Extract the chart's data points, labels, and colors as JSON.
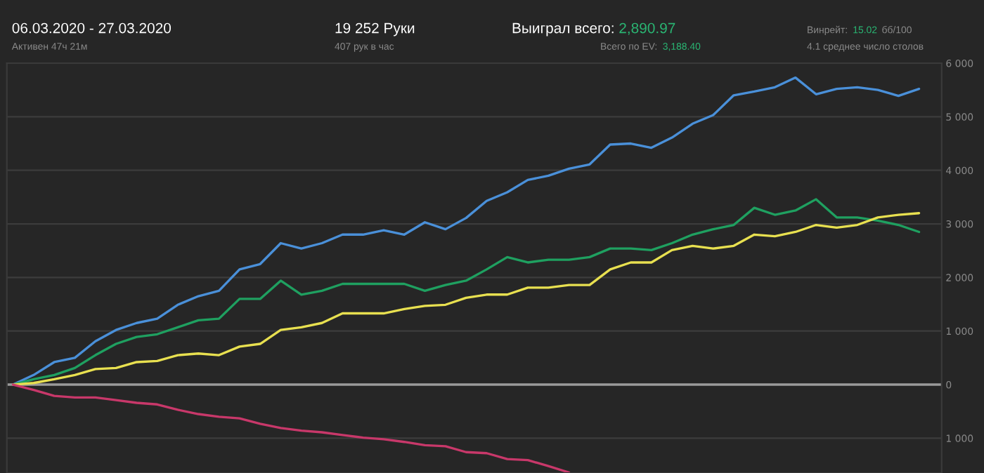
{
  "chart_data": {
    "type": "line",
    "title": "06.03.2020 - 27.03.2020",
    "subtitle": "Активен 47ч 21м",
    "annotations": [
      "19 252 Руки",
      "407 рук в час",
      "Выиграл всего:",
      "2,890.97",
      "Всего по EV:",
      "3,188.40",
      "Винрейт:",
      "15.02",
      "бб/100",
      "4.1 среднее число столов"
    ],
    "categories": [
      null,
      null,
      null,
      null,
      null,
      null,
      null,
      null,
      null,
      null,
      null,
      null,
      null,
      null,
      null,
      null,
      null,
      null,
      null,
      null,
      null,
      null,
      null,
      null,
      null,
      null,
      null,
      null,
      null,
      null,
      null,
      null,
      null,
      null,
      null,
      null,
      null,
      null,
      null,
      null,
      null,
      null,
      null,
      null,
      null
    ],
    "series": [
      {
        "color": "#4a90d9",
        "values": [
          0,
          180,
          420,
          500,
          810,
          1020,
          1150,
          1230,
          1490,
          1650,
          1750,
          2150,
          2250,
          2640,
          2540,
          2640,
          2800,
          2800,
          2880,
          2800,
          3030,
          2900,
          3110,
          3430,
          3590,
          3820,
          3900,
          4030,
          4110,
          4480,
          4500,
          4420,
          4610,
          4870,
          5030,
          5400,
          5470,
          5550,
          5730,
          5420,
          5520,
          5550,
          5500,
          5390,
          5520
        ]
      },
      {
        "color": "#1fa060",
        "values": [
          0,
          100,
          180,
          310,
          550,
          760,
          890,
          940,
          1070,
          1200,
          1230,
          1600,
          1600,
          1940,
          1680,
          1750,
          1880,
          1880,
          1880,
          1880,
          1750,
          1860,
          1940,
          2150,
          2380,
          2280,
          2330,
          2330,
          2380,
          2540,
          2540,
          2510,
          2640,
          2800,
          2900,
          2980,
          3300,
          3170,
          3250,
          3460,
          3120,
          3120,
          3060,
          2980,
          2850
        ]
      },
      {
        "color": "#e8e050",
        "values": [
          0,
          30,
          100,
          180,
          290,
          310,
          420,
          440,
          550,
          580,
          550,
          710,
          760,
          1020,
          1070,
          1150,
          1330,
          1330,
          1330,
          1410,
          1470,
          1490,
          1620,
          1680,
          1680,
          1810,
          1810,
          1860,
          1860,
          2150,
          2280,
          2280,
          2510,
          2590,
          2540,
          2590,
          2800,
          2770,
          2850,
          2980,
          2930,
          2980,
          3120,
          3170,
          3200
        ]
      },
      {
        "color": "#c8386a",
        "values": [
          0,
          -100,
          -210,
          -240,
          -240,
          -290,
          -340,
          -370,
          -470,
          -550,
          -600,
          -630,
          -730,
          -810,
          -860,
          -890,
          -940,
          -990,
          -1020,
          -1070,
          -1130,
          -1150,
          -1260,
          -1280,
          -1390,
          -1410,
          -1520,
          -1640,
          null,
          null,
          null,
          null,
          null,
          null,
          null,
          null,
          null,
          null,
          null,
          null,
          null,
          null,
          null,
          null,
          null
        ]
      }
    ],
    "ylim": [
      -1650,
      6000
    ],
    "yticks": [
      {
        "value": -1000,
        "label": "1 000"
      },
      0,
      {
        "value": 1000,
        "label": "1 000"
      },
      {
        "value": 2000,
        "label": "2 000"
      },
      {
        "value": 3000,
        "label": "3 000"
      },
      {
        "value": 4000,
        "label": "4 000"
      },
      {
        "value": 5000,
        "label": "5 000"
      },
      {
        "value": 6000,
        "label": "6 000"
      }
    ],
    "ref_lines": [
      {
        "axis": "y",
        "value": 0,
        "color": "#9a9a9a"
      }
    ],
    "grid": "y",
    "tick_labels": "y",
    "legend": false,
    "marker": "none",
    "line_style": "solid"
  }
}
